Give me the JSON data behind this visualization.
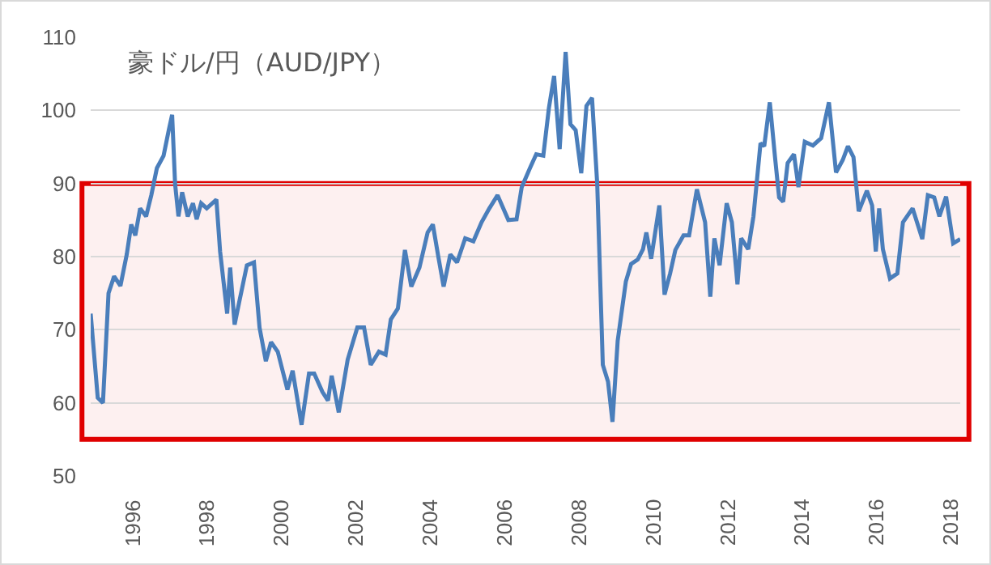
{
  "chart_data": {
    "type": "line",
    "title": "豪ドル/円（AUD/JPY）",
    "x": [
      1994.87,
      1995.06,
      1995.2,
      1995.35,
      1995.5,
      1995.67,
      1995.84,
      1995.96,
      1996.07,
      1996.2,
      1996.36,
      1996.5,
      1996.65,
      1996.83,
      1996.97,
      1997.06,
      1997.14,
      1997.23,
      1997.33,
      1997.48,
      1997.62,
      1997.72,
      1997.84,
      1997.99,
      1998.25,
      1998.35,
      1998.54,
      1998.62,
      1998.74,
      1998.86,
      1999.07,
      1999.26,
      1999.41,
      1999.58,
      1999.72,
      1999.9,
      2000.16,
      2000.3,
      2000.54,
      2000.74,
      2000.88,
      2001.1,
      2001.25,
      2001.35,
      2001.54,
      2001.78,
      2002.04,
      2002.22,
      2002.4,
      2002.62,
      2002.8,
      2002.94,
      2003.13,
      2003.32,
      2003.49,
      2003.71,
      2003.93,
      2004.07,
      2004.22,
      2004.36,
      2004.54,
      2004.72,
      2004.94,
      2005.16,
      2005.38,
      2005.59,
      2005.81,
      2006.1,
      2006.32,
      2006.46,
      2006.68,
      2006.85,
      2007.04,
      2007.19,
      2007.33,
      2007.48,
      2007.64,
      2007.77,
      2007.91,
      2008.06,
      2008.2,
      2008.35,
      2008.49,
      2008.64,
      2008.78,
      2008.9,
      2009.04,
      2009.26,
      2009.4,
      2009.58,
      2009.72,
      2009.81,
      2009.94,
      2010.16,
      2010.3,
      2010.45,
      2010.59,
      2010.81,
      2010.96,
      2011.17,
      2011.39,
      2011.53,
      2011.64,
      2011.78,
      2011.97,
      2012.11,
      2012.26,
      2012.36,
      2012.55,
      2012.69,
      2012.88,
      2012.98,
      2013.13,
      2013.27,
      2013.38,
      2013.49,
      2013.61,
      2013.78,
      2013.9,
      2014.07,
      2014.29,
      2014.51,
      2014.72,
      2014.91,
      2015.09,
      2015.23,
      2015.38,
      2015.52,
      2015.74,
      2015.88,
      2015.98,
      2016.07,
      2016.17,
      2016.36,
      2016.56,
      2016.71,
      2016.97,
      2017.23,
      2017.38,
      2017.55,
      2017.69,
      2017.87,
      2018.06,
      2018.25
    ],
    "series": [
      {
        "color": "#4a7ebb",
        "values": [
          72.2,
          60.7,
          60,
          75,
          77.3,
          76,
          80.3,
          84.4,
          82.9,
          86.6,
          85.5,
          88.4,
          92.1,
          93.8,
          97.3,
          99.4,
          89.9,
          85.5,
          88.8,
          85.5,
          87.3,
          85.1,
          87.3,
          86.6,
          87.8,
          80.7,
          72.2,
          78.5,
          70.7,
          73.7,
          78.8,
          79.2,
          70.3,
          65.7,
          68.3,
          67,
          61.8,
          64.4,
          57,
          64,
          64,
          61.5,
          60.3,
          63.7,
          58.7,
          65.9,
          70.3,
          70.3,
          65.2,
          67,
          66.6,
          71.4,
          72.9,
          80.9,
          75.9,
          78.5,
          83.3,
          84.4,
          79.9,
          75.9,
          80.3,
          79.2,
          82.5,
          82.1,
          84.7,
          86.6,
          88.4,
          85,
          85.1,
          89.5,
          92.1,
          94,
          93.8,
          100.3,
          104.7,
          94.7,
          108,
          98.1,
          97.3,
          91.4,
          100.6,
          101.7,
          89.9,
          65.2,
          62.9,
          57.4,
          68.5,
          76.6,
          79,
          79.6,
          81,
          83.3,
          79.7,
          87,
          74.8,
          77.7,
          80.9,
          82.9,
          82.9,
          89.2,
          84.7,
          74.5,
          82.5,
          78.8,
          87.3,
          84.7,
          76.2,
          82.5,
          81,
          85.5,
          95.5,
          95.1,
          101.1,
          93.6,
          88.1,
          87.5,
          92.8,
          94,
          89.5,
          95.7,
          95.2,
          96.2,
          101.1,
          91.5,
          93.2,
          95.1,
          93.6,
          86.2,
          89,
          87,
          80.7,
          86.6,
          81,
          77,
          77.7,
          84.7,
          86.6,
          82.4,
          88.4,
          88.1,
          85.5,
          88.2,
          81.8,
          82.4
        ]
      }
    ],
    "xlim": [
      1994.87,
      2018.25
    ],
    "xticks": [
      1996,
      1998,
      2000,
      2002,
      2004,
      2006,
      2008,
      2010,
      2012,
      2014,
      2016,
      2018
    ],
    "ylim": [
      50,
      110
    ],
    "yticks": [
      50,
      60,
      70,
      80,
      90,
      100,
      110
    ],
    "grid": "y",
    "line_style": "solid",
    "bands": [
      {
        "axis": "y",
        "from": 55,
        "to": 90,
        "color": "#e00000"
      }
    ]
  }
}
